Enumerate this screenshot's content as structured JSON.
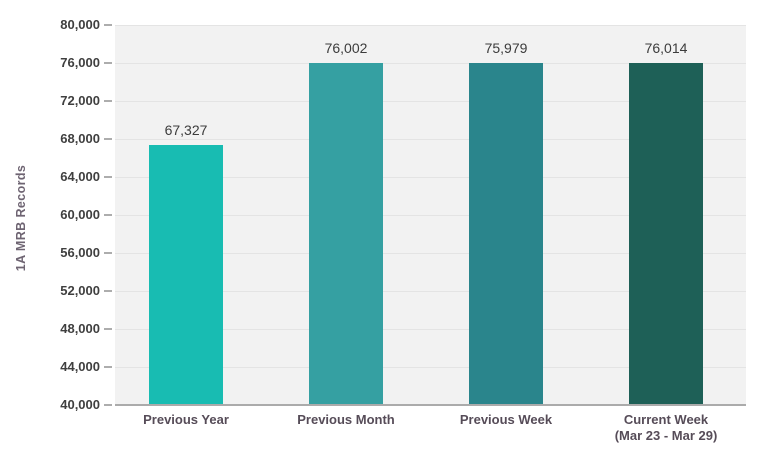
{
  "chart_data": {
    "type": "bar",
    "title": "",
    "xlabel": "",
    "ylabel": "1A MRB Records",
    "categories": [
      "Previous Year",
      "Previous Month",
      "Previous Week",
      "Current Week"
    ],
    "category_sublabels": [
      "",
      "",
      "",
      "(Mar 23 - Mar 29)"
    ],
    "values": [
      67327,
      76002,
      75979,
      76014
    ],
    "value_labels": [
      "67,327",
      "76,002",
      "75,979",
      "76,014"
    ],
    "bar_colors": [
      "#18BCB2",
      "#35A0A2",
      "#2A858C",
      "#1E6057"
    ],
    "ylim": [
      40000,
      80000
    ],
    "ytick_step": 4000,
    "yticks": [
      "80,000",
      "76,000",
      "72,000",
      "68,000",
      "64,000",
      "60,000",
      "56,000",
      "52,000",
      "48,000",
      "44,000",
      "40,000"
    ],
    "grid": true,
    "legend": "none",
    "plot_bg_color": "#F2F2F2",
    "gridline_color": "#E4E4E4",
    "axis_line_color": "#ABABAB",
    "tick_mark_color": "#ADADAD",
    "tick_label_color": "#3F3F3F",
    "value_label_color": "#3C3C3C",
    "category_label_color": "#564C58",
    "ylabel_color": "#6E6472"
  }
}
